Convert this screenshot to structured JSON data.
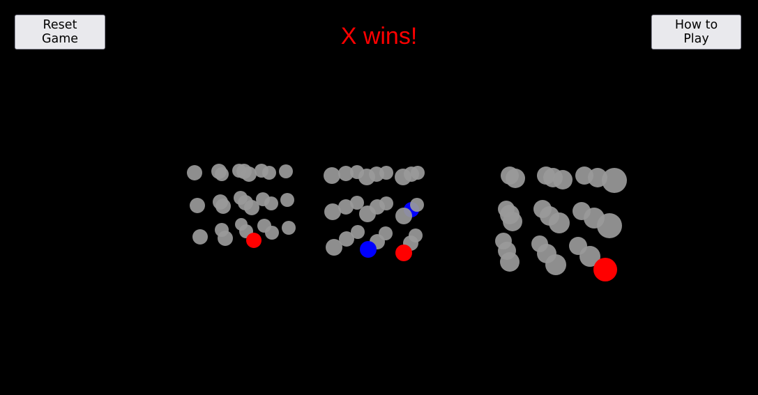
{
  "controls": {
    "reset_label": "Reset Game",
    "howto_label": "How to Play"
  },
  "status": {
    "text": "X wins!",
    "color": "#ff0000"
  },
  "colors": {
    "empty": "#9a9a9a",
    "x_piece": "#ff0000",
    "o_piece": "#0000ff",
    "background": "#000000"
  }
}
